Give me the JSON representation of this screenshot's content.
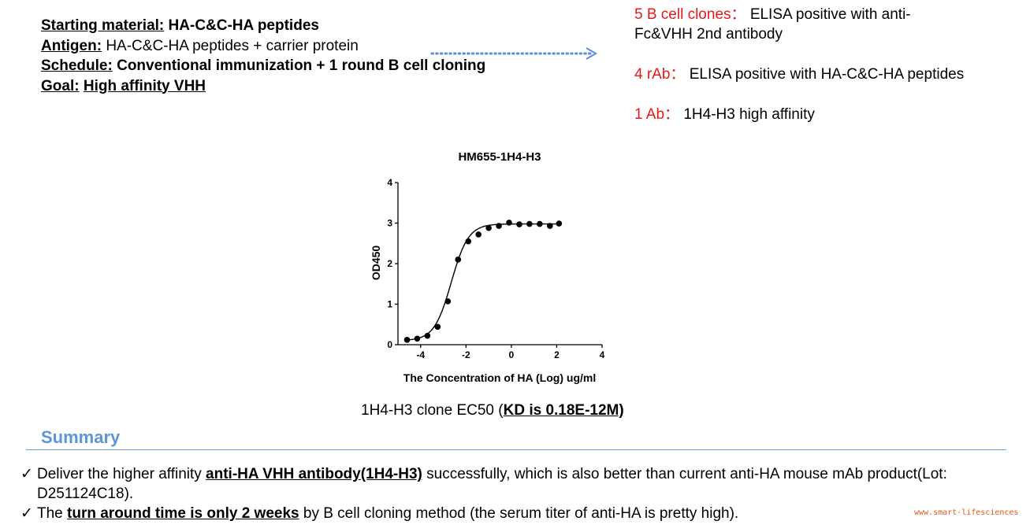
{
  "info": {
    "starting_label": "Starting material:",
    "starting_value": "HA-C&C-HA peptides",
    "antigen_label": "Antigen:",
    "antigen_value": "HA-C&C-HA peptides + carrier protein",
    "schedule_label": "Schedule:",
    "schedule_value": "Conventional immunization + 1 round B cell cloning",
    "goal_label": "Goal:",
    "goal_value": "High affinity VHH"
  },
  "results": [
    {
      "count": "5 B cell clones",
      "sep": "：",
      "text": "ELISA positive with anti-Fc&VHH 2nd antibody"
    },
    {
      "count": "4 rAb",
      "sep": "：",
      "text": "ELISA positive with HA-C&C-HA peptides"
    },
    {
      "count": "1 Ab",
      "sep": "：",
      "text": "1H4-H3 high affinity"
    }
  ],
  "chart_data": {
    "type": "scatter",
    "title": "HM655-1H4-H3",
    "xlabel": "The Concentration of HA (Log) ug/ml",
    "ylabel": "OD450",
    "xlim": [
      -5,
      4
    ],
    "ylim": [
      0,
      4
    ],
    "xticks": [
      -4,
      -2,
      0,
      2,
      4
    ],
    "yticks": [
      0,
      1,
      2,
      3,
      4
    ],
    "series": [
      {
        "x": [
          -4.6,
          -4.15,
          -3.7,
          -3.25,
          -2.8,
          -2.35,
          -1.9,
          -1.45,
          -1.0,
          -0.55,
          -0.1,
          0.35,
          0.8,
          1.25,
          1.7,
          2.1
        ],
        "y": [
          0.12,
          0.15,
          0.22,
          0.44,
          1.07,
          2.1,
          2.55,
          2.72,
          2.88,
          2.93,
          3.01,
          2.97,
          2.98,
          2.98,
          2.93,
          2.99
        ]
      }
    ],
    "fit": {
      "type": "4PL sigmoid",
      "bottom": 0.1,
      "top": 2.98,
      "log_ec50": -2.65,
      "hill": 1.15
    }
  },
  "caption": {
    "text": "1H4-H3 clone EC50 (",
    "kd": "KD is 0.18E-12M)"
  },
  "summary": {
    "title": "Summary",
    "check": "✓",
    "b1_pre": "Deliver the higher affinity ",
    "b1_em": "anti-HA VHH antibody(1H4-H3)",
    "b1_post": " successfully, which is also better than current anti-HA mouse mAb product(Lot: D251124C18).",
    "b2_pre": "The ",
    "b2_em": "turn around time is only 2 weeks",
    "b2_post": " by B cell cloning method (the serum titer of anti-HA is pretty high)."
  },
  "watermark": "www.smart-lifesciences"
}
